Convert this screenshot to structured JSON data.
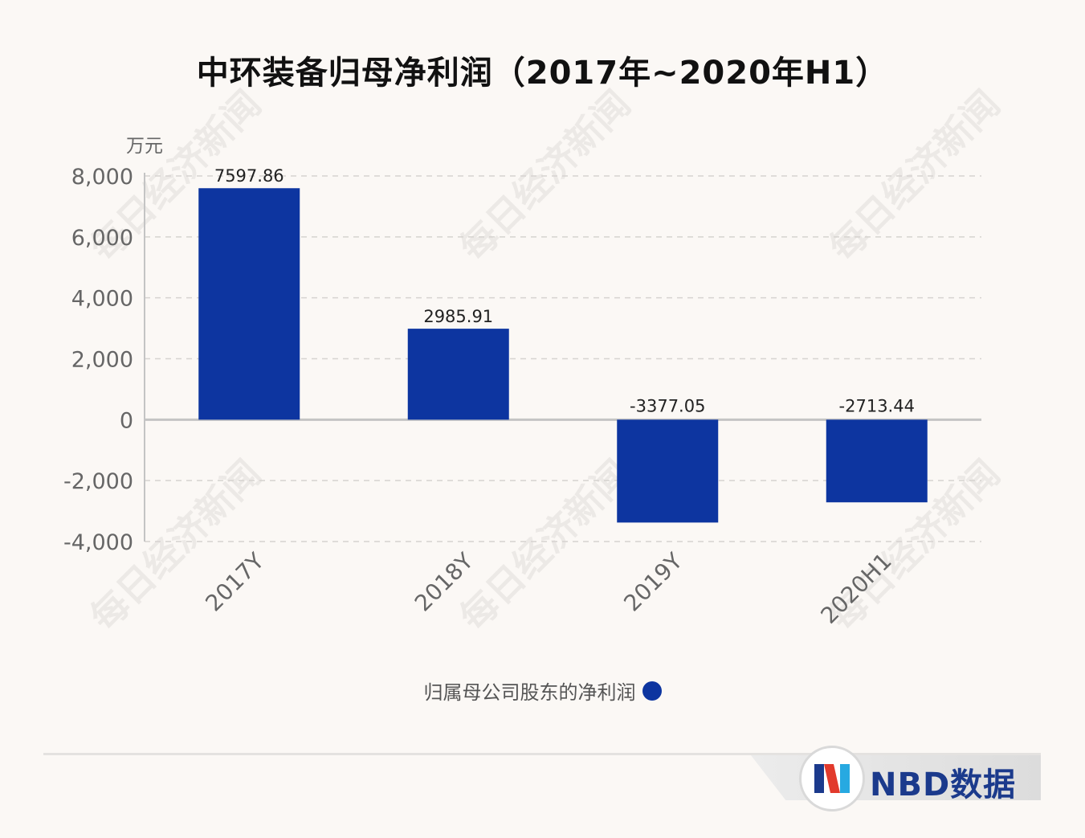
{
  "title": "中环装备归母净利润（2017年~2020年H1）",
  "chart_data": {
    "type": "bar",
    "categories": [
      "2017Y",
      "2018Y",
      "2019Y",
      "2020H1"
    ],
    "series": [
      {
        "name": "归属母公司股东的净利润",
        "values": [
          7597.86,
          2985.91,
          -3377.05,
          -2713.44
        ]
      }
    ],
    "data_labels": [
      "7597.86",
      "2985.91",
      "-3377.05",
      "-2713.44"
    ],
    "ylabel": "万元",
    "ylim": [
      -4000,
      8000
    ],
    "yticks": [
      8000,
      6000,
      4000,
      2000,
      0,
      -2000,
      -4000
    ],
    "ytick_labels": [
      "8,000",
      "6,000",
      "4,000",
      "2,000",
      "0",
      "-2,000",
      "-4,000"
    ],
    "grid": true,
    "legend": "bottom-center",
    "bar_color": "#0d35a0"
  },
  "legend_label": "归属母公司股东的净利润",
  "watermark": "每日经济新闻",
  "footer": {
    "brand": "NBD数据",
    "logo_letter": "N"
  }
}
